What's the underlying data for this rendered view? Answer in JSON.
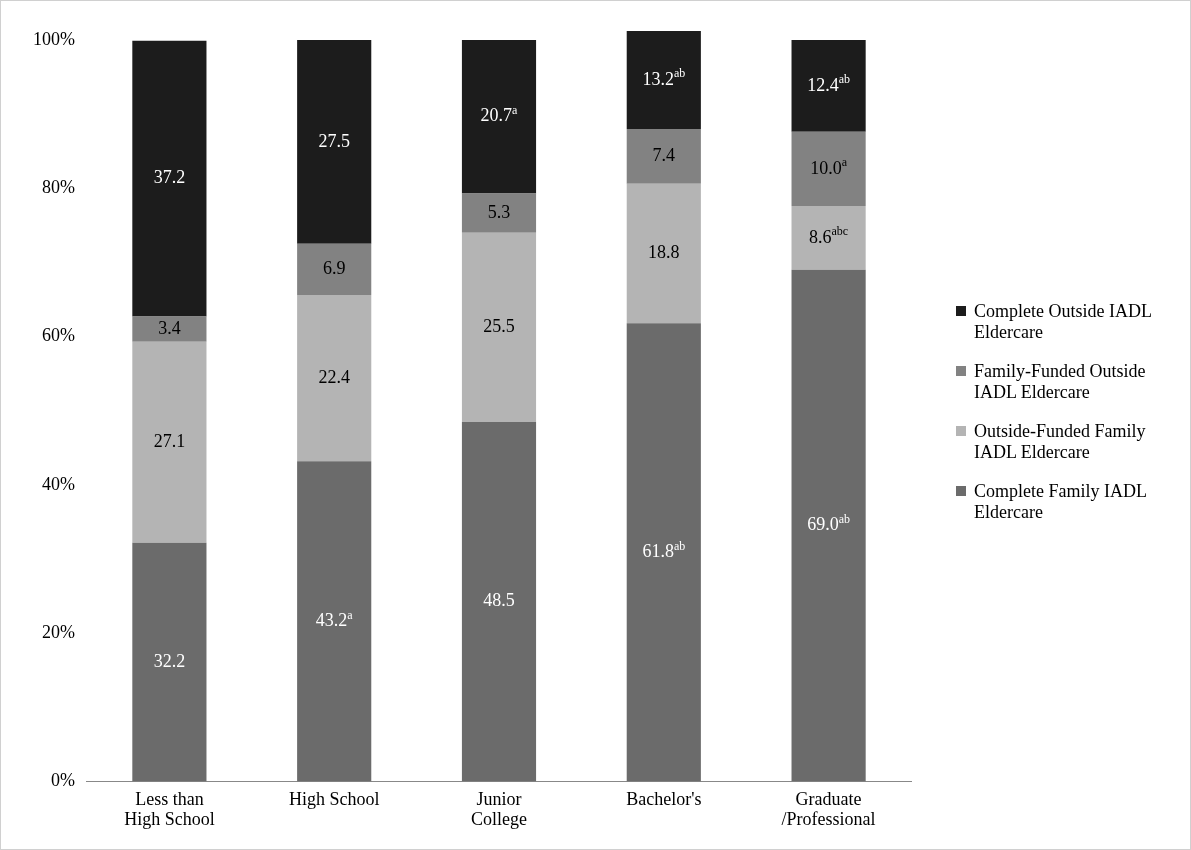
{
  "chart_data": {
    "type": "bar",
    "stacked": true,
    "categories": [
      "Less than High School",
      "High School",
      "Junior College",
      "Bachelor's",
      "Graduate /Professional"
    ],
    "series": [
      {
        "name": "Complete Family IADL Eldercare",
        "color": "#6b6b6b",
        "values": [
          32.2,
          43.2,
          48.5,
          61.8,
          69.0
        ],
        "value_labels": [
          "32.2",
          "43.2$^{a}$",
          "48.5",
          "61.8$^{ab}$",
          "69.0$^{ab}$"
        ]
      },
      {
        "name": "Outside-Funded Family IADL Eldercare",
        "color": "#b4b4b4",
        "values": [
          27.1,
          22.4,
          25.5,
          18.8,
          8.6
        ],
        "value_labels": [
          "27.1",
          "22.4",
          "25.5",
          "18.8",
          "8.6$^{abc}$"
        ]
      },
      {
        "name": "Family-Funded Outside IADL Eldercare",
        "color": "#828282",
        "values": [
          3.4,
          6.9,
          5.3,
          7.4,
          10.0
        ],
        "value_labels": [
          "3.4",
          "6.9",
          "5.3",
          "7.4",
          "10.0$^{a}$"
        ]
      },
      {
        "name": "Complete Outside IADL Eldercare",
        "color": "#1c1c1c",
        "values": [
          37.2,
          27.5,
          20.7,
          13.2,
          12.4
        ],
        "value_labels": [
          "37.2",
          "27.5",
          "20.7$^{a}$",
          "13.2$^{ab}$",
          "12.4$^{ab}$"
        ]
      }
    ],
    "ylim": [
      0,
      101.2
    ],
    "yticks": [
      {
        "value": 0,
        "label": "0%"
      },
      {
        "value": 20,
        "label": "20%"
      },
      {
        "value": 40,
        "label": "40%"
      },
      {
        "value": 60,
        "label": "60%"
      },
      {
        "value": 80,
        "label": "80%"
      },
      {
        "value": 100,
        "label": "100%"
      }
    ],
    "grid": false,
    "legend": "right"
  }
}
